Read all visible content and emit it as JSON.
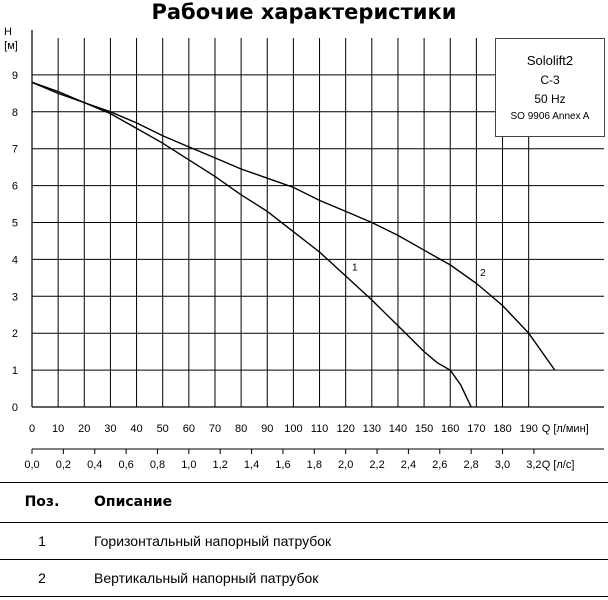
{
  "title": "Рабочие характеристики",
  "legend": {
    "model": "Sololift2",
    "variant": "C-3",
    "frequency": "50 Hz",
    "standard": "SO 9906 Annex A"
  },
  "table": {
    "headers": {
      "pos": "Поз.",
      "desc": "Описание"
    },
    "rows": [
      {
        "pos": "1",
        "desc": "Горизонтальный напорный патрубок"
      },
      {
        "pos": "2",
        "desc": "Вертикальный напорный патрубок"
      }
    ]
  },
  "chart_data": {
    "type": "line",
    "title": "Рабочие характеристики",
    "ylabel": "H",
    "yunit": "[м]",
    "xlabel": "Q [л/мин]",
    "x2label": "Q [л/с]",
    "xlim": [
      0,
      200
    ],
    "ylim": [
      0,
      10
    ],
    "x_ticks": [
      0,
      10,
      20,
      30,
      40,
      50,
      60,
      70,
      80,
      90,
      100,
      110,
      120,
      130,
      140,
      150,
      160,
      170,
      180,
      190
    ],
    "x_tick_labels": [
      "0",
      "10",
      "20",
      "30",
      "40",
      "50",
      "60",
      "70",
      "80",
      "90",
      "100",
      "110",
      "120",
      "130",
      "140",
      "150",
      "160",
      "170",
      "180",
      "190"
    ],
    "x2_ticks": [
      0.0,
      0.2,
      0.4,
      0.6,
      0.8,
      1.0,
      1.2,
      1.4,
      1.6,
      1.8,
      2.0,
      2.2,
      2.4,
      2.6,
      2.8,
      3.0,
      3.2
    ],
    "x2_tick_labels": [
      "0,0",
      "0,2",
      "0,4",
      "0,6",
      "0,8",
      "1,0",
      "1,2",
      "1,4",
      "1,6",
      "1,8",
      "2,0",
      "2,2",
      "2,4",
      "2,6",
      "2,8",
      "3,0",
      "3,2"
    ],
    "y_ticks": [
      0,
      1,
      2,
      3,
      4,
      5,
      6,
      7,
      8,
      9
    ],
    "y_tick_labels": [
      "0",
      "1",
      "2",
      "3",
      "4",
      "5",
      "6",
      "7",
      "8",
      "9"
    ],
    "grid": true,
    "series": [
      {
        "name": "1",
        "x": [
          0,
          10,
          20,
          30,
          40,
          50,
          60,
          70,
          80,
          90,
          100,
          110,
          120,
          130,
          140,
          150,
          155,
          160,
          164,
          166,
          168
        ],
        "y": [
          8.8,
          8.55,
          8.25,
          7.95,
          7.55,
          7.15,
          6.7,
          6.25,
          5.75,
          5.3,
          4.75,
          4.2,
          3.55,
          2.9,
          2.2,
          1.5,
          1.2,
          1.0,
          0.6,
          0.3,
          0.0
        ]
      },
      {
        "name": "2",
        "x": [
          0,
          10,
          20,
          30,
          40,
          50,
          60,
          70,
          80,
          90,
          100,
          110,
          120,
          130,
          140,
          150,
          160,
          170,
          180,
          190,
          200
        ],
        "y": [
          8.8,
          8.5,
          8.25,
          8.0,
          7.7,
          7.35,
          7.05,
          6.75,
          6.45,
          6.2,
          5.95,
          5.6,
          5.3,
          5.0,
          4.65,
          4.25,
          3.85,
          3.35,
          2.75,
          2.0,
          1.0
        ]
      }
    ]
  }
}
